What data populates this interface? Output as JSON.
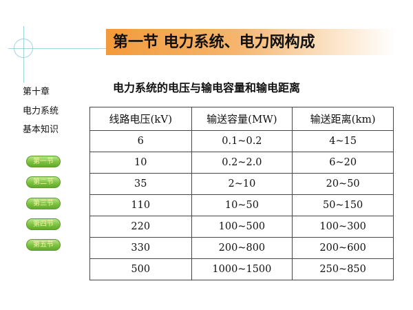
{
  "header": {
    "title": "第一节  电力系统、电力网构成"
  },
  "sidebar": {
    "chapter_lines": [
      "第十章",
      "电力系统",
      "基本知识"
    ],
    "section_buttons": [
      "第一节",
      "第二节",
      "第三节",
      "第四节",
      "第五节"
    ]
  },
  "main": {
    "heading": "电力系统的电压与输电容量和输电距离",
    "table": {
      "headers": [
        "线路电压(kV)",
        "输送容量(MW)",
        "输送距离(km)"
      ],
      "rows": [
        [
          "6",
          "0.1~0.2",
          "4~15"
        ],
        [
          "10",
          "0.2~2.0",
          "6~20"
        ],
        [
          "35",
          "2~10",
          "20~50"
        ],
        [
          "110",
          "10~50",
          "50~150"
        ],
        [
          "220",
          "100~500",
          "100~300"
        ],
        [
          "330",
          "200~800",
          "200~600"
        ],
        [
          "500",
          "1000~1500",
          "250~850"
        ]
      ]
    }
  },
  "colors": {
    "banner_accent": "#f39a3b",
    "button_green": "#7cc23f",
    "button_text": "#f7f3a8",
    "crosshair": "#9fd3df"
  }
}
